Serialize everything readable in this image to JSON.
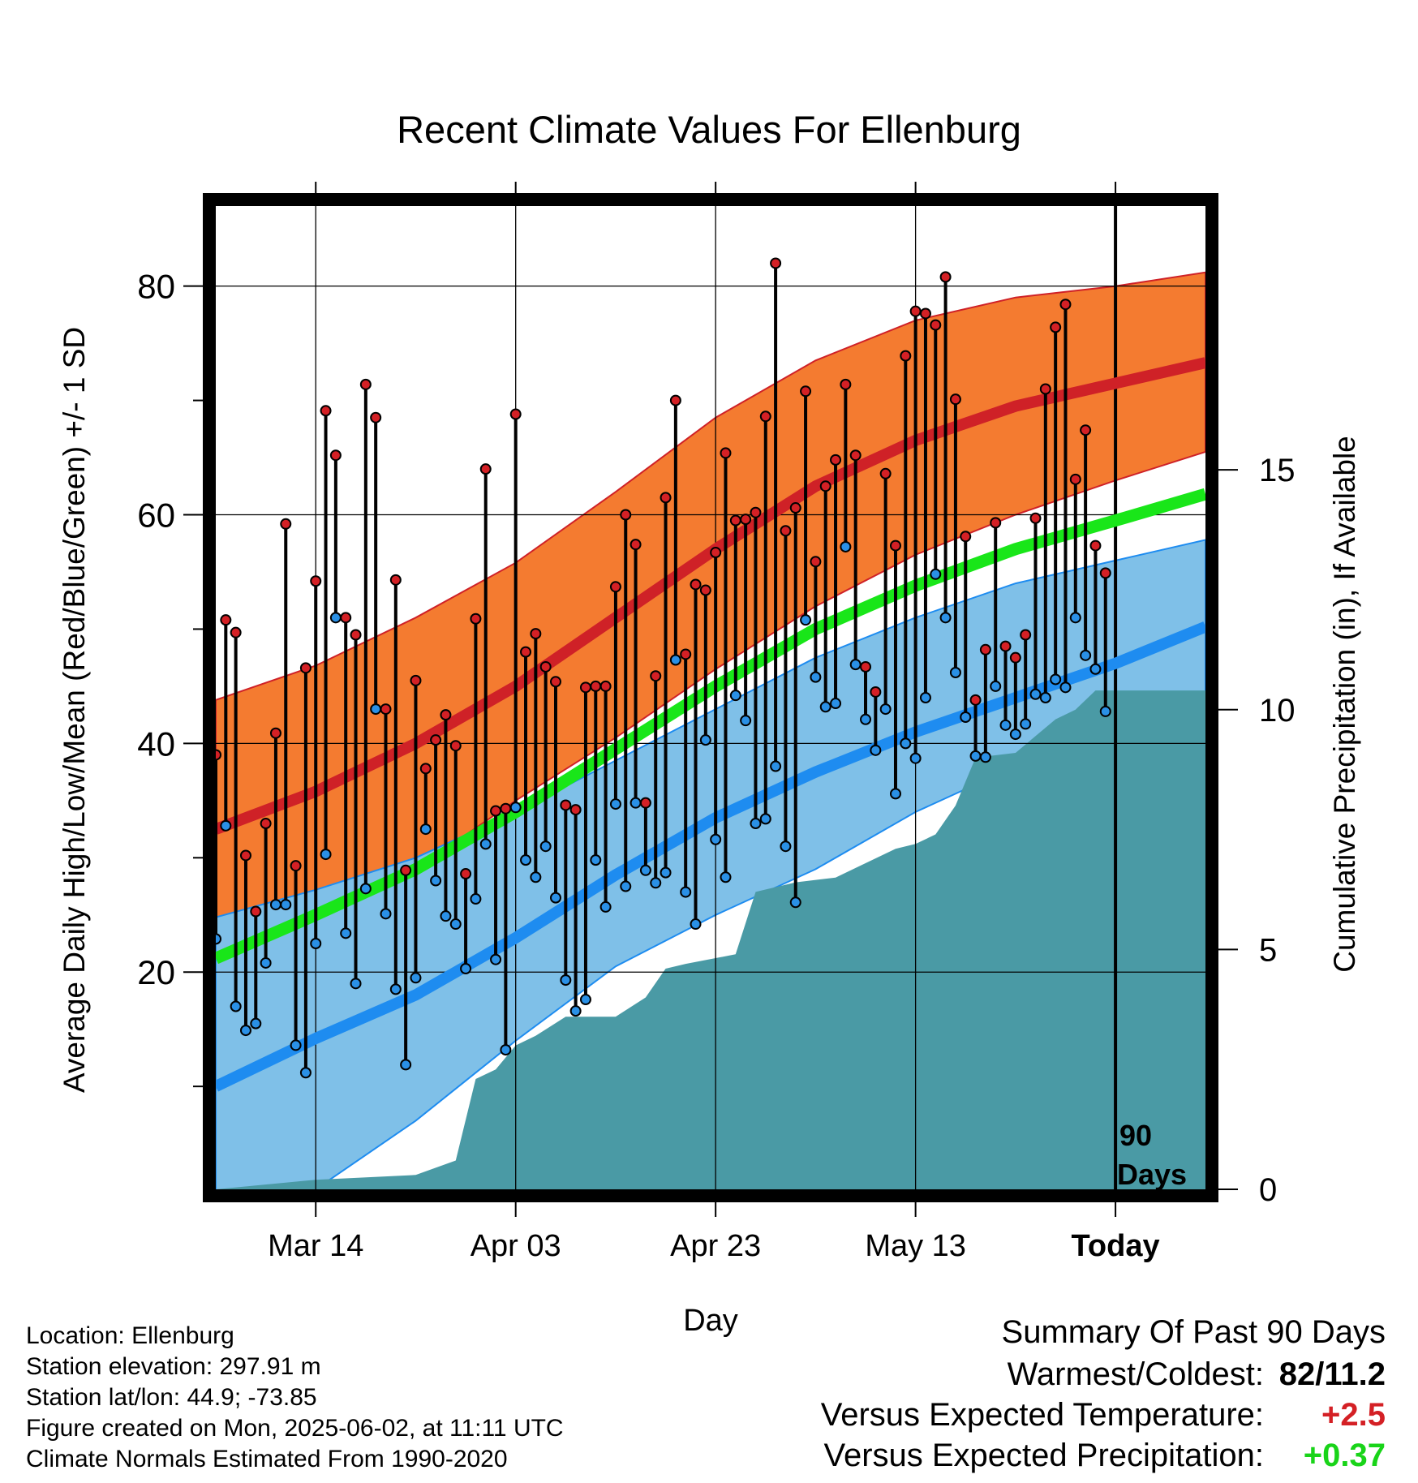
{
  "title": "Recent Climate Values For Ellenburg",
  "y_left_label": "Average Daily High/Low/Mean (Red/Blue/Green) +/- 1 SD",
  "y_right_label": "Cumulative Precipitation (in), If Available",
  "x_label": "Day",
  "today_marker_label": [
    "90",
    "Days"
  ],
  "footer": {
    "location": "Location: Ellenburg",
    "elevation": "Station elevation: 297.91 m",
    "latlon": "Station lat/lon: 44.9; -73.85",
    "created": "Figure created on Mon, 2025-06-02, at 11:11 UTC",
    "normals": "Climate Normals Estimated From 1990-2020"
  },
  "summary": {
    "heading": "Summary Of Past 90 Days",
    "warm_cold_label": "Warmest/Coldest:",
    "warm_cold_value": "82/11.2",
    "temp_label": "Versus Expected Temperature:",
    "temp_value": "+2.5",
    "precip_label": "Versus Expected Precipitation:",
    "precip_value": "+0.37"
  },
  "colors": {
    "high_band": "#f47b30",
    "high_line": "#cf2127",
    "low_band": "#7fc0e8",
    "low_line": "#1e8cf0",
    "mean_line": "#19e619",
    "precip_fill": "#4a9aa5",
    "high_dot": "#d42025",
    "low_dot": "#2a90e6",
    "temp_anomaly": "#d42025",
    "precip_anomaly": "#19d419"
  },
  "chart_data": {
    "type": "line",
    "title": "Recent Climate Values For Ellenburg",
    "xlabel": "Day",
    "ylabel": "Average Daily High/Low/Mean (Red/Blue/Green) +/- 1 SD",
    "y2label": "Cumulative Precipitation (in), If Available",
    "x_ticks": [
      {
        "date": "Mar 14",
        "label": "Mar 14"
      },
      {
        "date": "Apr 03",
        "label": "Apr 03"
      },
      {
        "date": "Apr 23",
        "label": "Apr 23"
      },
      {
        "date": "May 13",
        "label": "May 13"
      },
      {
        "date": "Jun 02",
        "label": "Today"
      }
    ],
    "x_range": [
      "Mar 04",
      "Jun 11"
    ],
    "ylim": [
      1,
      87
    ],
    "y_ticks": [
      20,
      40,
      60,
      80
    ],
    "y2lim": [
      0,
      20.5
    ],
    "y2_ticks": [
      0,
      5,
      10,
      15
    ],
    "grid": true,
    "period_days": 90,
    "start_date": "Mar 04",
    "end_date": "Jun 11",
    "normals_dates": [
      "Mar 04",
      "Mar 14",
      "Mar 24",
      "Apr 03",
      "Apr 13",
      "Apr 23",
      "May 03",
      "May 13",
      "May 23",
      "Jun 02",
      "Jun 11"
    ],
    "normal_high": [
      32.5,
      35.8,
      40.0,
      45.0,
      51.0,
      57.0,
      62.5,
      66.5,
      69.5,
      71.5,
      73.3
    ],
    "normal_high_upper": [
      43.8,
      46.8,
      51.0,
      55.8,
      62.0,
      68.5,
      73.5,
      77.0,
      79.0,
      80.0,
      81.2
    ],
    "normal_high_lower": [
      22.8,
      25.5,
      29.0,
      35.0,
      40.5,
      46.5,
      52.0,
      56.5,
      60.0,
      63.0,
      65.5
    ],
    "normal_low": [
      10.0,
      14.2,
      18.0,
      23.0,
      28.5,
      33.5,
      37.5,
      41.0,
      44.0,
      47.0,
      50.2
    ],
    "normal_low_upper": [
      24.8,
      27.2,
      30.0,
      34.0,
      38.5,
      43.0,
      47.5,
      51.0,
      54.0,
      56.0,
      57.8
    ],
    "normal_low_lower": [
      0.0,
      1.0,
      7.0,
      14.0,
      20.5,
      25.0,
      29.0,
      34.0,
      38.0,
      41.0,
      43.8
    ],
    "normal_mean": [
      21.2,
      25.0,
      29.0,
      34.0,
      39.5,
      45.0,
      50.0,
      53.8,
      57.0,
      59.5,
      61.8
    ],
    "daily_high": [
      39,
      50.8,
      49.7,
      30.2,
      25.3,
      33,
      40.9,
      59.2,
      29.3,
      46.6,
      54.2,
      69.1,
      65.2,
      51,
      49.5,
      71.4,
      68.5,
      43,
      54.3,
      28.9,
      45.5,
      37.8,
      40.3,
      42.5,
      39.8,
      28.6,
      50.9,
      64,
      34.1,
      34.3,
      68.8,
      48,
      49.6,
      46.7,
      45.4,
      34.6,
      34.2,
      44.9,
      45,
      45,
      53.7,
      60,
      57.4,
      34.8,
      45.9,
      61.5,
      70,
      47.8,
      53.9,
      53.4,
      56.7,
      65.4,
      59.5,
      59.6,
      60.2,
      68.6,
      82,
      58.6,
      60.6,
      70.8,
      55.9,
      62.5,
      64.8,
      71.4,
      65.2,
      46.7,
      44.5,
      63.6,
      57.3,
      73.9,
      77.8,
      77.6,
      76.6,
      80.8,
      70.1,
      58.1,
      43.8,
      48.2,
      59.3,
      48.5,
      47.5,
      49.5,
      59.7,
      71,
      76.4,
      78.4,
      63.1,
      67.4,
      57.3,
      54.9
    ],
    "daily_low": [
      22.9,
      32.8,
      17,
      14.9,
      15.5,
      20.8,
      25.9,
      25.9,
      13.6,
      11.2,
      22.5,
      30.3,
      51,
      23.4,
      19,
      27.3,
      43,
      25.1,
      18.5,
      11.9,
      19.5,
      32.5,
      28,
      24.9,
      24.2,
      20.3,
      26.4,
      31.2,
      21.1,
      13.2,
      34.4,
      29.8,
      28.3,
      31,
      26.5,
      19.3,
      16.6,
      17.6,
      29.8,
      25.7,
      34.7,
      27.5,
      34.8,
      28.9,
      27.8,
      28.7,
      47.3,
      27,
      24.2,
      40.3,
      31.6,
      28.3,
      44.2,
      42,
      33,
      33.4,
      38,
      31,
      26.1,
      50.8,
      45.8,
      43.2,
      43.5,
      57.2,
      46.9,
      42.1,
      39.4,
      43,
      35.6,
      40,
      38.7,
      44,
      54.8,
      51,
      46.2,
      42.3,
      38.9,
      38.8,
      45,
      41.6,
      40.8,
      41.7,
      44.3,
      44,
      45.6,
      44.9,
      51,
      47.7,
      46.5,
      42.8
    ],
    "cumulative_precip_dates": [
      "Mar 04",
      "Mar 14",
      "Mar 24",
      "Mar 28",
      "Mar 30",
      "Apr 01",
      "Apr 03",
      "Apr 05",
      "Apr 08",
      "Apr 13",
      "Apr 16",
      "Apr 18",
      "Apr 20",
      "Apr 25",
      "Apr 27",
      "May 01",
      "May 05",
      "May 07",
      "May 11",
      "May 13",
      "May 15",
      "May 17",
      "May 19",
      "May 23",
      "May 27",
      "May 29",
      "May 31",
      "Jun 11"
    ],
    "cumulative_precip": [
      0,
      0.2,
      0.3,
      0.6,
      2.3,
      2.5,
      3.0,
      3.2,
      3.6,
      3.6,
      4.0,
      4.6,
      4.7,
      4.9,
      6.2,
      6.4,
      6.5,
      6.7,
      7.1,
      7.2,
      7.4,
      8.0,
      9.0,
      9.1,
      9.8,
      10.0,
      10.4,
      10.4
    ],
    "series": [
      {
        "name": "Average Daily High",
        "key": "normal_high"
      },
      {
        "name": "Average Daily Low",
        "key": "normal_low"
      },
      {
        "name": "Average Daily Mean",
        "key": "normal_mean"
      },
      {
        "name": "Cumulative Precipitation (in)",
        "key": "cumulative_precip"
      }
    ]
  }
}
